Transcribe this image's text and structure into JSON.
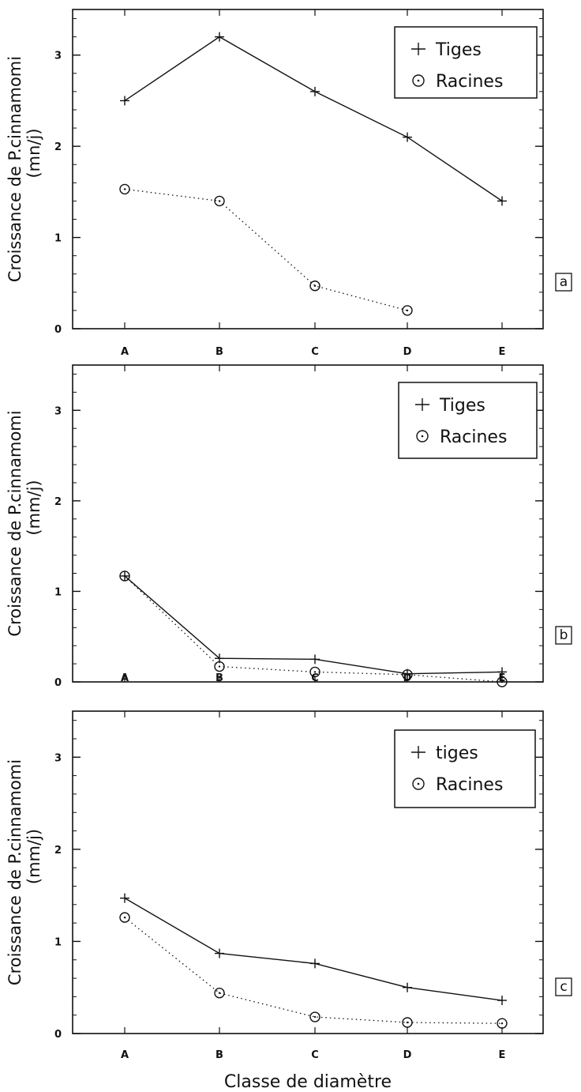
{
  "chart_data": [
    {
      "type": "line",
      "panel_label": "a",
      "categories": [
        "A",
        "B",
        "C",
        "D",
        "E"
      ],
      "ylabel_line1": "Croissance de P.cinnamomi",
      "ylabel_line2": "(mn/j)",
      "xlabel": "",
      "ylim": [
        0,
        3.5
      ],
      "yticks": [
        "0",
        "1",
        "2",
        "3"
      ],
      "legend_position": "top-right",
      "series": [
        {
          "name": "Tiges",
          "marker": "plus",
          "line": "solid",
          "values": [
            2.5,
            3.2,
            2.6,
            2.1,
            1.4
          ]
        },
        {
          "name": "Racines",
          "marker": "circle-dot",
          "line": "dotted",
          "values": [
            1.53,
            1.4,
            0.47,
            0.2,
            null
          ]
        }
      ]
    },
    {
      "type": "line",
      "panel_label": "b",
      "categories": [
        "A",
        "B",
        "C",
        "D",
        "E"
      ],
      "ylabel_line1": "Croissance de P.cinnamomi",
      "ylabel_line2": "(mm/j)",
      "xlabel": "",
      "ylim": [
        0,
        3.5
      ],
      "yticks": [
        "0",
        "1",
        "2",
        "3"
      ],
      "legend_position": "top-right",
      "series": [
        {
          "name": "Tiges",
          "marker": "plus",
          "line": "solid",
          "values": [
            1.17,
            0.26,
            0.25,
            0.09,
            0.11
          ]
        },
        {
          "name": "Racines",
          "marker": "circle-dot",
          "line": "dotted",
          "values": [
            1.17,
            0.17,
            0.11,
            0.08,
            0.0
          ]
        }
      ]
    },
    {
      "type": "line",
      "panel_label": "c",
      "categories": [
        "A",
        "B",
        "C",
        "D",
        "E"
      ],
      "ylabel_line1": "Croissance de P.cinnamomi",
      "ylabel_line2": "(mm/j)",
      "xlabel": "Classe de diamètre",
      "ylim": [
        0,
        3.5
      ],
      "yticks": [
        "0",
        "1",
        "2",
        "3"
      ],
      "legend_position": "top-right",
      "series": [
        {
          "name": "tiges",
          "marker": "plus",
          "line": "solid",
          "values": [
            1.47,
            0.87,
            0.76,
            0.5,
            0.36
          ]
        },
        {
          "name": "Racines",
          "marker": "circle-dot",
          "line": "dotted",
          "values": [
            1.26,
            0.44,
            0.18,
            0.12,
            0.11
          ]
        }
      ]
    }
  ]
}
